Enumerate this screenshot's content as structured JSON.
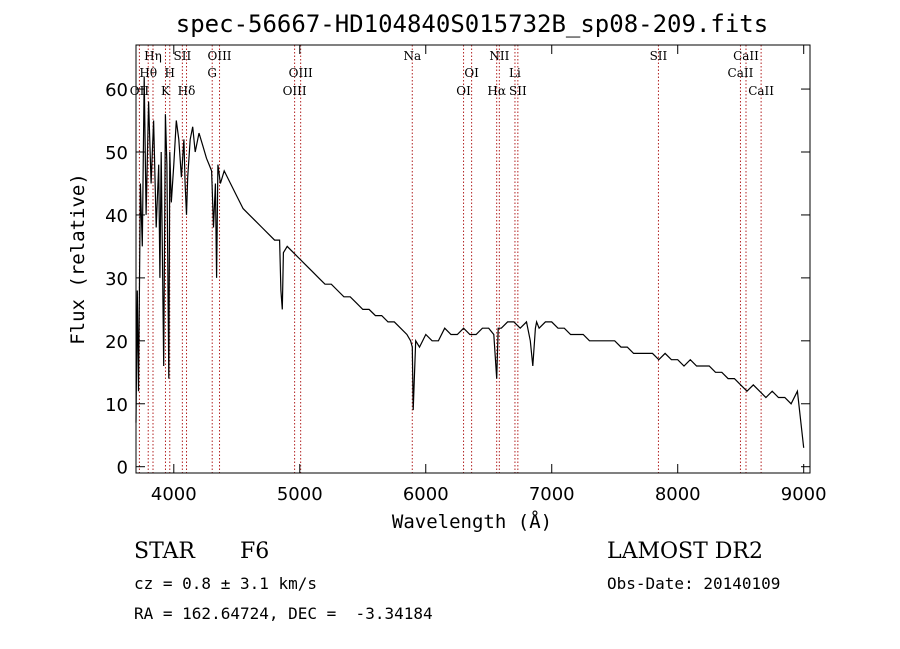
{
  "chart_data": {
    "type": "line",
    "title": "spec-56667-HD104840S015732B_sp08-209.fits",
    "xlabel": "Wavelength (Å)",
    "ylabel": "Flux (relative)",
    "xlim": [
      3700,
      9050
    ],
    "ylim": [
      -1,
      67
    ],
    "xticks": [
      4000,
      5000,
      6000,
      7000,
      8000,
      9000
    ],
    "yticks": [
      0,
      10,
      20,
      30,
      40,
      50,
      60
    ],
    "series": [
      {
        "x": [
          3700,
          3710,
          3720,
          3735,
          3750,
          3765,
          3780,
          3800,
          3820,
          3840,
          3860,
          3880,
          3890,
          3900,
          3920,
          3933,
          3945,
          3960,
          3968,
          3980,
          4000,
          4020,
          4040,
          4060,
          4080,
          4090,
          4101,
          4110,
          4130,
          4150,
          4170,
          4200,
          4230,
          4260,
          4280,
          4300,
          4315,
          4330,
          4340,
          4350,
          4370,
          4400,
          4450,
          4500,
          4550,
          4600,
          4650,
          4700,
          4750,
          4800,
          4840,
          4850,
          4861,
          4870,
          4900,
          4950,
          5000,
          5050,
          5100,
          5150,
          5200,
          5250,
          5300,
          5350,
          5400,
          5450,
          5500,
          5550,
          5600,
          5650,
          5700,
          5750,
          5800,
          5850,
          5880,
          5893,
          5900,
          5920,
          5950,
          6000,
          6050,
          6100,
          6150,
          6200,
          6250,
          6300,
          6350,
          6400,
          6450,
          6500,
          6540,
          6563,
          6575,
          6600,
          6650,
          6700,
          6750,
          6800,
          6830,
          6850,
          6870,
          6880,
          6900,
          6950,
          7000,
          7050,
          7100,
          7150,
          7200,
          7250,
          7300,
          7350,
          7400,
          7450,
          7500,
          7550,
          7600,
          7650,
          7700,
          7750,
          7800,
          7850,
          7900,
          7950,
          8000,
          8050,
          8100,
          8150,
          8200,
          8250,
          8300,
          8350,
          8400,
          8450,
          8500,
          8550,
          8600,
          8650,
          8700,
          8750,
          8800,
          8850,
          8900,
          8950,
          9000
        ],
        "y": [
          7,
          28,
          12,
          45,
          35,
          62,
          40,
          58,
          45,
          55,
          38,
          48,
          30,
          50,
          16,
          56,
          48,
          14,
          50,
          42,
          48,
          55,
          52,
          46,
          52,
          45,
          40,
          46,
          52,
          54,
          50,
          53,
          51,
          49,
          48,
          47,
          38,
          45,
          30,
          48,
          45,
          47,
          45,
          43,
          41,
          40,
          39,
          38,
          37,
          36,
          36,
          28,
          25,
          34,
          35,
          34,
          33,
          32,
          31,
          30,
          29,
          29,
          28,
          27,
          27,
          26,
          25,
          25,
          24,
          24,
          23,
          23,
          22,
          21,
          20,
          19,
          9,
          20,
          19,
          21,
          20,
          20,
          22,
          21,
          21,
          22,
          21,
          21,
          22,
          22,
          21,
          14,
          22,
          22,
          23,
          23,
          22,
          23,
          20,
          16,
          22,
          23,
          22,
          23,
          23,
          22,
          22,
          21,
          21,
          21,
          20,
          20,
          20,
          20,
          20,
          19,
          19,
          18,
          18,
          18,
          18,
          17,
          18,
          17,
          17,
          16,
          17,
          16,
          16,
          16,
          15,
          15,
          14,
          14,
          13,
          12,
          13,
          12,
          11,
          12,
          11,
          11,
          10,
          12,
          3
        ]
      }
    ],
    "lines_top": [
      {
        "label": "Hη",
        "x": 3835
      },
      {
        "label": "SII",
        "x": 4068
      },
      {
        "label": "OIII",
        "x": 4363
      },
      {
        "label": "Na",
        "x": 5893
      },
      {
        "label": "NII",
        "x": 6584
      },
      {
        "label": "SII",
        "x": 7847
      },
      {
        "label": "CaII",
        "x": 8542
      }
    ],
    "lines_mid": [
      {
        "label": "Hθ",
        "x": 3797
      },
      {
        "label": "H",
        "x": 3968
      },
      {
        "label": "G",
        "x": 4305
      },
      {
        "label": "OIII",
        "x": 5007
      },
      {
        "label": "OI",
        "x": 6364
      },
      {
        "label": "Li",
        "x": 6708
      },
      {
        "label": "CaII",
        "x": 8498
      }
    ],
    "lines_low": [
      {
        "label": "OII",
        "x": 3727
      },
      {
        "label": "K",
        "x": 3934
      },
      {
        "label": "Hδ",
        "x": 4101
      },
      {
        "label": "OIII",
        "x": 4959
      },
      {
        "label": "OI",
        "x": 6300
      },
      {
        "label": "Hα",
        "x": 6563
      },
      {
        "label": "SII",
        "x": 6731
      },
      {
        "label": "CaII",
        "x": 8662
      }
    ]
  },
  "info": {
    "object_class": "STAR",
    "subclass": "F6",
    "survey": "LAMOST DR2",
    "cz": "cz = 0.8 ± 3.1 km/s",
    "obs_date": "Obs-Date: 20140109",
    "coords": "RA = 162.64724, DEC =  -3.34184"
  },
  "colors": {
    "spectrum": "#000000",
    "line_markers": "#b22222"
  }
}
